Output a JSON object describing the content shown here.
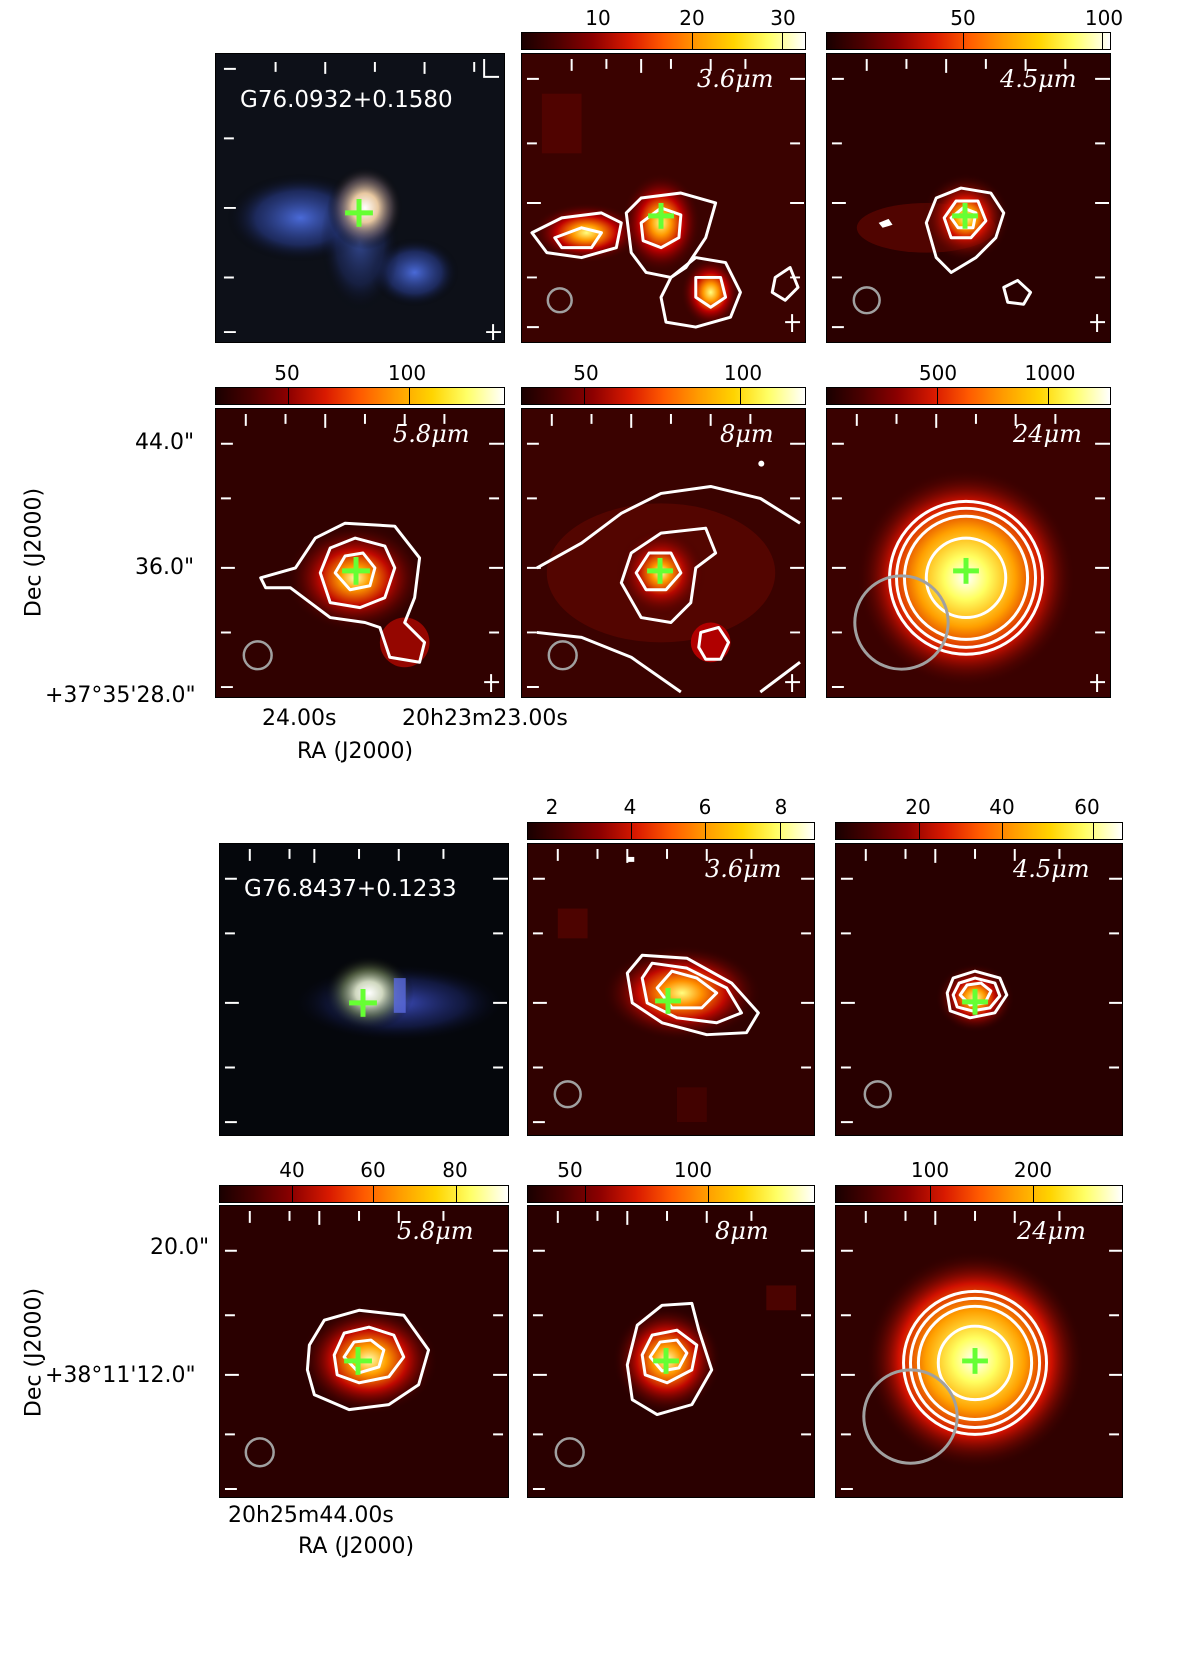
{
  "figure_groups": [
    {
      "source": "G76.0932+0.1580",
      "panels": [
        {
          "band": "",
          "colorbar": null
        },
        {
          "band": "3.6μm",
          "colorbar": {
            "ticks": [
              "10",
              "20",
              "30"
            ],
            "tick_fracs": [
              0.27,
              0.6,
              0.92
            ]
          }
        },
        {
          "band": "4.5μm",
          "colorbar": {
            "ticks": [
              "50",
              "100"
            ],
            "tick_fracs": [
              0.48,
              0.97
            ]
          }
        },
        {
          "band": "5.8μm",
          "colorbar": {
            "ticks": [
              "50",
              "100"
            ],
            "tick_fracs": [
              0.25,
              0.67
            ]
          }
        },
        {
          "band": "8μm",
          "colorbar": {
            "ticks": [
              "50",
              "100"
            ],
            "tick_fracs": [
              0.22,
              0.77
            ]
          }
        },
        {
          "band": "24μm",
          "colorbar": {
            "ticks": [
              "500",
              "1000"
            ],
            "tick_fracs": [
              0.39,
              0.78
            ]
          }
        }
      ],
      "axes": {
        "ra_ticks": [
          "24.00s",
          "20h23m23.00s"
        ],
        "dec_ticks": [
          "44.0\"",
          "36.0\"",
          "+37°35'28.0\""
        ],
        "xlabel": "RA (J2000)",
        "ylabel": "Dec (J2000)"
      }
    },
    {
      "source": "G76.8437+0.1233",
      "panels": [
        {
          "band": "",
          "colorbar": null
        },
        {
          "band": "3.6μm",
          "colorbar": {
            "ticks": [
              "2",
              "4",
              "6",
              "8"
            ],
            "tick_fracs": [
              0.09,
              0.36,
              0.62,
              0.88
            ]
          }
        },
        {
          "band": "4.5μm",
          "colorbar": {
            "ticks": [
              "20",
              "40",
              "60"
            ],
            "tick_fracs": [
              0.29,
              0.58,
              0.9
            ]
          }
        },
        {
          "band": "5.8μm",
          "colorbar": {
            "ticks": [
              "40",
              "60",
              "80"
            ],
            "tick_fracs": [
              0.25,
              0.53,
              0.82
            ]
          }
        },
        {
          "band": "8μm",
          "colorbar": {
            "ticks": [
              "50",
              "100"
            ],
            "tick_fracs": [
              0.2,
              0.63
            ]
          }
        },
        {
          "band": "24μm",
          "colorbar": {
            "ticks": [
              "100",
              "200"
            ],
            "tick_fracs": [
              0.33,
              0.69
            ]
          }
        }
      ],
      "axes": {
        "ra_ticks": [
          "20h25m44.00s"
        ],
        "dec_ticks": [
          "20.0\"",
          "+38°11'12.0\""
        ],
        "xlabel": "RA (J2000)",
        "ylabel": "Dec (J2000)"
      }
    }
  ],
  "colors": {
    "contour": "#ffffff",
    "marker": "#66ff33",
    "beam": "#a0a0a0"
  }
}
